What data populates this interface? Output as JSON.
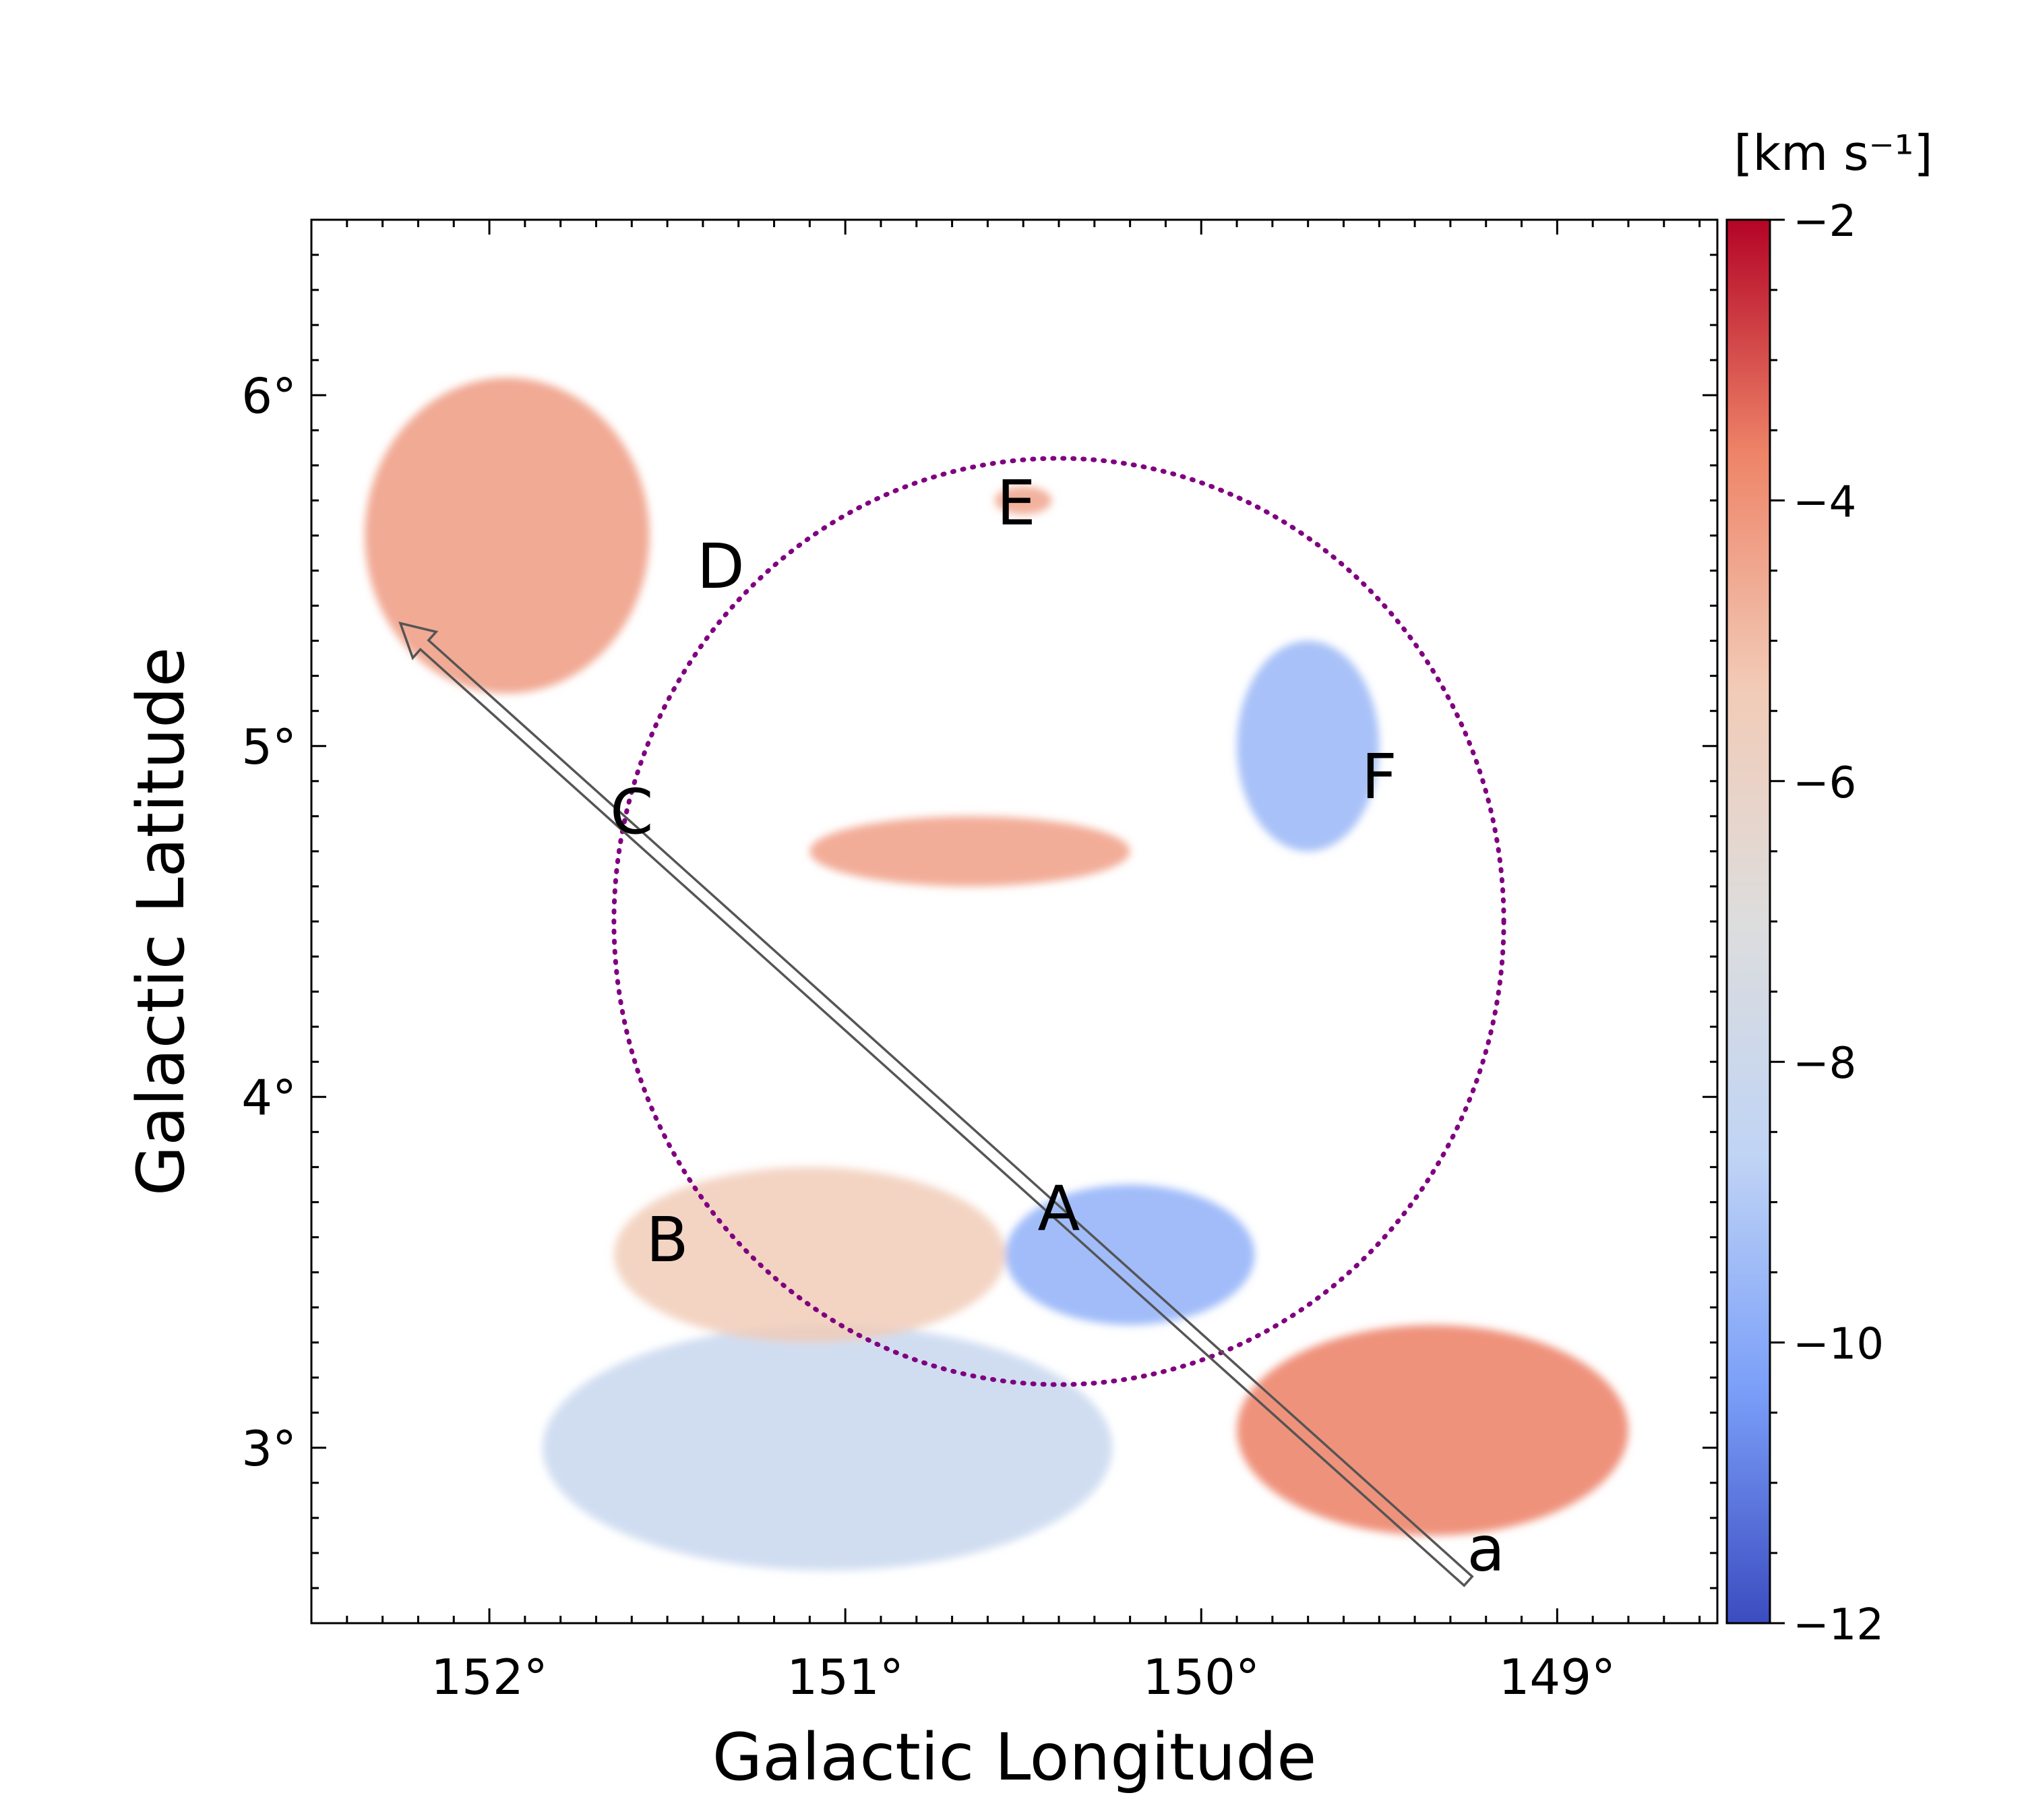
{
  "chart_data": {
    "type": "heatmap",
    "title": "",
    "xlabel": "Galactic Longitude",
    "ylabel": "Galactic Latitude",
    "x_axis": {
      "min": 148.55,
      "max": 152.5,
      "reversed": true,
      "ticks": [
        152,
        151,
        150,
        149
      ],
      "tick_labels": [
        "152°",
        "151°",
        "150°",
        "149°"
      ]
    },
    "y_axis": {
      "min": 2.5,
      "max": 6.5,
      "ticks": [
        3,
        4,
        5,
        6
      ],
      "tick_labels": [
        "3°",
        "4°",
        "5°",
        "6°"
      ]
    },
    "colorbar": {
      "label": "[km s⁻¹]",
      "min": -12,
      "max": -2,
      "ticks": [
        -2,
        -4,
        -6,
        -8,
        -10,
        -12
      ],
      "tick_labels": [
        "−2",
        "−4",
        "−6",
        "−8",
        "−10",
        "−12"
      ],
      "colormap": "coolwarm",
      "color_stops": [
        "#3b4cc0",
        "#7b9ff9",
        "#c0d4f5",
        "#dddddd",
        "#f2cbb7",
        "#ee8468",
        "#b40426"
      ]
    },
    "velocity_regions": [
      {
        "l": 151.05,
        "b": 3.0,
        "v": -8.2,
        "rx": 0.8,
        "ry": 0.35
      },
      {
        "l": 151.95,
        "b": 5.6,
        "v": -4.2,
        "rx": 0.4,
        "ry": 0.45
      },
      {
        "l": 150.65,
        "b": 4.7,
        "v": -4.3,
        "rx": 0.45,
        "ry": 0.1
      },
      {
        "l": 149.35,
        "b": 3.05,
        "v": -3.6,
        "rx": 0.55,
        "ry": 0.3
      },
      {
        "l": 150.2,
        "b": 3.55,
        "v": -9.8,
        "rx": 0.35,
        "ry": 0.2
      },
      {
        "l": 151.1,
        "b": 3.55,
        "v": -5.4,
        "rx": 0.55,
        "ry": 0.25
      },
      {
        "l": 149.7,
        "b": 5.0,
        "v": -9.6,
        "rx": 0.2,
        "ry": 0.3
      },
      {
        "l": 150.5,
        "b": 5.7,
        "v": -4.4,
        "rx": 0.08,
        "ry": 0.04
      }
    ],
    "region_labels": [
      {
        "text": "A",
        "l": 150.4,
        "b": 3.67
      },
      {
        "text": "B",
        "l": 151.5,
        "b": 3.58
      },
      {
        "text": "C",
        "l": 151.6,
        "b": 4.8
      },
      {
        "text": "D",
        "l": 151.35,
        "b": 5.5
      },
      {
        "text": "E",
        "l": 150.52,
        "b": 5.68
      },
      {
        "text": "F",
        "l": 149.5,
        "b": 4.9
      },
      {
        "text": "a",
        "l": 149.2,
        "b": 2.7
      }
    ],
    "ellipse": {
      "center_l": 150.4,
      "center_b": 4.5,
      "half_width_deg": 1.25,
      "half_height_deg": 1.32,
      "color": "#800080",
      "style": "dotted"
    },
    "arrow": {
      "start_l": 149.25,
      "start_b": 2.62,
      "end_l": 152.25,
      "end_b": 5.35,
      "color": "#555555"
    }
  }
}
